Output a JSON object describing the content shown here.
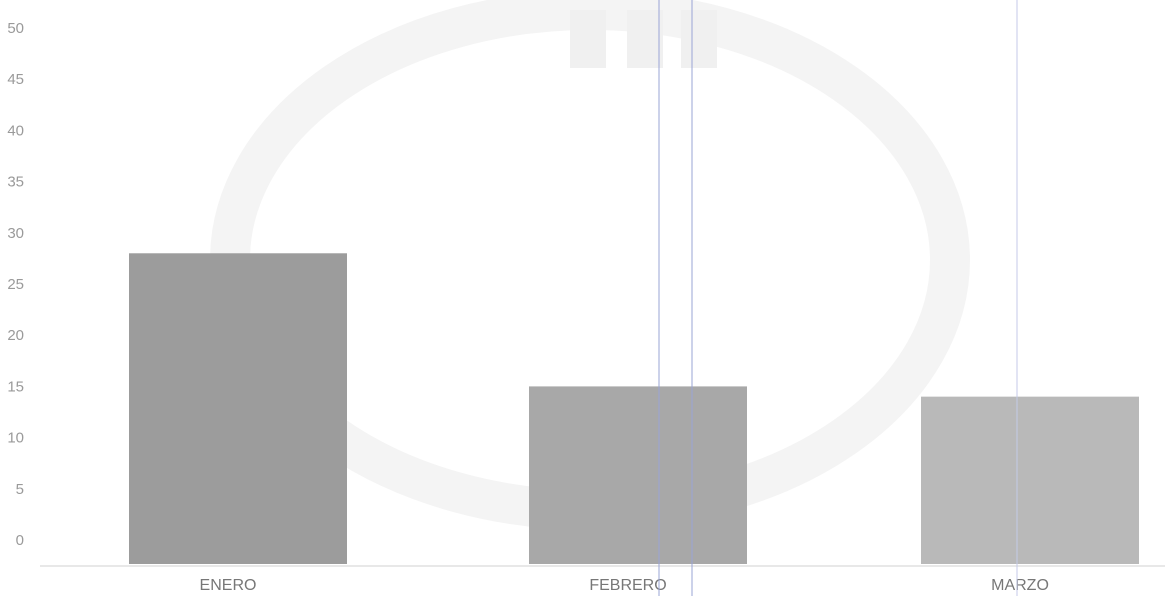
{
  "chart_data": {
    "type": "bar",
    "title": "",
    "xlabel": "",
    "ylabel": "",
    "categories": [
      "ENERO",
      "FEBRERO",
      "MARZO"
    ],
    "values": [
      28,
      15,
      14
    ],
    "ylim": [
      0,
      50
    ],
    "yticks": [
      0,
      5,
      10,
      15,
      20,
      25,
      30,
      35,
      40,
      45,
      50
    ],
    "grid": false,
    "legend": "none",
    "colors": {
      "bars": [
        "#9c9c9c",
        "#a8a8a8",
        "#b9b9b9"
      ],
      "axis_line": "#d0d0d0",
      "scan_line": "#8e9ccf",
      "watermark": "#f2f2f2"
    }
  }
}
